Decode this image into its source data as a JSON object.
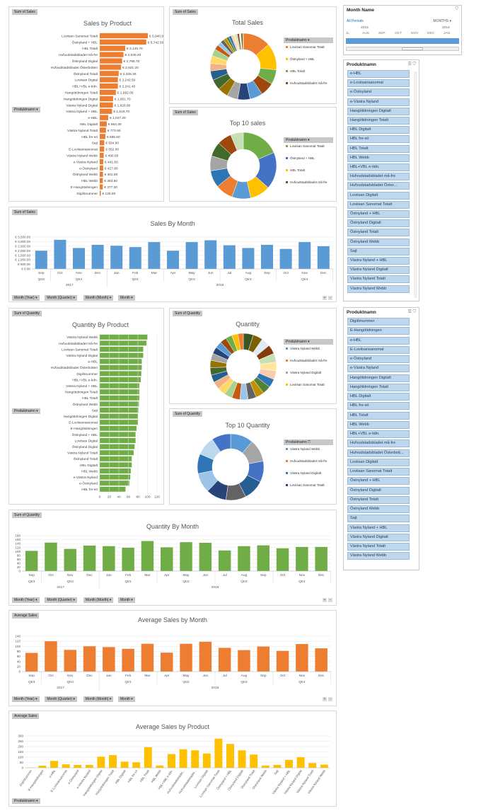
{
  "colors": {
    "orange": "#ed7d31",
    "blue": "#5b9bd5",
    "green": "#70ad47",
    "yellow": "#ffc000",
    "slicer": "#bdd7ee"
  },
  "sales_by_product": {
    "tag": "Sum of Sales",
    "title": "Sales by Product",
    "filter": "Produktnamn",
    "chart_data": {
      "type": "bar",
      "orientation": "horizontal",
      "categories": [
        "Loviisan Sanomat Totalt",
        "Östnyland + HBL",
        "HBL Totalt",
        "Hufvudstadsbladet må-fre",
        "Östnyland Digital",
        "Hufvudstadsbladet Österbotten",
        "Östnyland Totalt",
        "Loviisan Digital",
        "HBL+VBL e-tidn.",
        "Hangötidningen Totalt",
        "Hangötidningen Digital",
        "Västra Nyland Digital",
        "Västra Nyland + HBL",
        "e-HBL",
        "HBL Digitalt",
        "Västra Nyland Totalt",
        "HBL fre-sö",
        "Sajt",
        "E-Loviisansanomat",
        "Västra Nyland Webb",
        "e-Västra Nyland",
        "e-Östnyland",
        "Östnyland Webb",
        "HBL Webb",
        "E-Hangötidningen",
        "Digilönummer"
      ],
      "values": [
        5940.9,
        5742.5,
        3145.7,
        2930.2,
        2766.7,
        2631.2,
        2339.3,
        2242.5,
        2241.4,
        1992,
        1651.7,
        1628.9,
        1519.7,
        1047.2,
        864.3,
        773.9,
        696.6,
        554.9,
        552,
        490,
        441.6,
        427.8,
        401.8,
        383.5,
        377.3,
        130.5
      ],
      "labels": [
        "€ 5,940.90",
        "€ 5,742.50",
        "€ 3,145.70",
        "€ 2,930.20",
        "€ 2,766.70",
        "€ 2,631.20",
        "€ 2,339.30",
        "€ 2,242.50",
        "€ 2,241.40",
        "€ 1,992.00",
        "€ 1,651.70",
        "€ 1,628.90",
        "€ 1,519.70",
        "€ 1,047.20",
        "€ 864.30",
        "€ 773.90",
        "€ 696.60",
        "€ 554.90",
        "€ 552.00",
        "€ 490.00",
        "€ 441.60",
        "€ 427.80",
        "€ 401.80",
        "€ 383.50",
        "€ 377.30",
        "€ 130.50"
      ],
      "title": "Sales by Product"
    }
  },
  "total_sales": {
    "tag": "Sum of Sales",
    "title": "Total Sales",
    "legend_title": "Produktnamn",
    "legend": [
      "Loviisan Sanomat Totalt",
      "Östnyland + HBL",
      "HBL Totalt",
      "Hufvudstadsbladet må-fre"
    ],
    "chart_data": {
      "type": "pie",
      "donut": true,
      "series": [
        {
          "values": [
            5940.9,
            5742.5,
            3145.7,
            2930.2,
            2766.7,
            2631.2,
            2339.3,
            2242.5,
            2241.4,
            1992,
            1651.7,
            1628.9,
            1519.7,
            1047.2,
            864.3,
            773.9,
            696.6,
            554.9,
            552,
            490,
            441.6,
            427.8,
            401.8,
            383.5,
            377.3,
            130.5
          ]
        }
      ]
    }
  },
  "top10_sales": {
    "tag": "Sum of Sales",
    "title": "Top 10 sales",
    "legend_title": "Produktnamn",
    "legend": [
      "Loviisan Sanomat Totalt",
      "Östnyland + HBL",
      "HBL Totalt",
      "Hufvudstadsbladet må-fre"
    ],
    "chart_data": {
      "type": "pie",
      "donut": true,
      "series": [
        {
          "values": [
            5940.9,
            5742.5,
            3145.7,
            2930.2,
            2766.7,
            2631.2,
            2339.3,
            2242.5,
            2241.4,
            1992
          ]
        }
      ]
    }
  },
  "month_slicer": {
    "title": "Month Name",
    "all_periods": "All Periods",
    "unit": "MONTHS",
    "years": [
      "2018",
      "2019"
    ],
    "months": [
      "JL",
      "AUG",
      "SEP",
      "OCT",
      "NOV",
      "DEC",
      "JAN"
    ]
  },
  "product_slicer_1": {
    "title": "Produktnamn",
    "items": [
      "e-HBL",
      "e-Loviisansanomat",
      "e-Östnyland",
      "e-Västra Nyland",
      "Hangötidningen Digitalt",
      "Hangötidningen Totalt",
      "HBL Digitalt",
      "HBL fre-sö",
      "HBL Totalt",
      "HBL Webb",
      "HBL+VBL e-tidn.",
      "Hufvudstadsbladet må-fre",
      "Hufvudstadsbladet Öster...",
      "Loviisan Digitalt",
      "Loviisan Sanomat Totalt",
      "Östnyland + HBL",
      "Östnyland Digitalt",
      "Östnyland Totalt",
      "Östnyland Webb",
      "Sajt",
      "Västra Nyland + HBL",
      "Västra Nyland Digitalt",
      "Västra Nyland Totalt",
      "Västra Nyland Webb"
    ]
  },
  "sales_by_month": {
    "tag": "Sum of Sales",
    "title": "Sales By Month",
    "filters": [
      "Month (Year)",
      "Month (Quarter)",
      "Month (Month)",
      "Month"
    ],
    "quarters": [
      "Qtr3",
      "Qtr4",
      "Qtr1",
      "Qtr2",
      "Qtr3",
      "Qtr4"
    ],
    "years": [
      "2017",
      "2018"
    ],
    "chart_data": {
      "type": "bar",
      "categories": [
        "Sep",
        "Oct",
        "Nov",
        "Dec",
        "Jan",
        "Feb",
        "Mar",
        "Apr",
        "May",
        "Jun",
        "Jul",
        "Aug",
        "Sep",
        "Oct",
        "Nov",
        "Dec"
      ],
      "values": [
        2000,
        3200,
        2300,
        2650,
        2550,
        2400,
        2950,
        2000,
        2950,
        3150,
        2600,
        2300,
        2650,
        2200,
        2950,
        2500
      ],
      "yticks": [
        "€ 3,500.00",
        "€ 3,000.00",
        "€ 2,500.00",
        "€ 2,000.00",
        "€ 1,500.00",
        "€ 1,000.00",
        "€ 500.00",
        "€ 0.00"
      ],
      "ylim": [
        0,
        3500
      ],
      "title": "Sales By Month"
    }
  },
  "quantity_by_product": {
    "tag": "Sum of Quantity",
    "title": "Quantity By Product",
    "filter": "Produktnamn",
    "chart_data": {
      "type": "bar",
      "orientation": "horizontal",
      "categories": [
        "Västra Nyland Webb",
        "Hufvudstadsbladet må-fre",
        "Loviisan Sanomat Totalt",
        "Västra Nyland Digital",
        "e-HBL",
        "Hufvudstadsbladet Österbotten",
        "Digilönummer",
        "HBL+VBL e-tidn.",
        "Västra Nyland + HBL",
        "Hangötidningen Totalt",
        "HBL Totalt",
        "Östnyland Webb",
        "Sajt",
        "Hangötidningen Digital",
        "E-Loviisansanomat",
        "E-Hangötidningen",
        "Östnyland + HBL",
        "Loviisan Digital",
        "Östnyland Digital",
        "Västra Nyland Totalt",
        "Östnyland Totalt",
        "HBL Digitalt",
        "HBL Webb",
        "e-Västra Nyland",
        "e-Östnyland",
        "HBL fre-sö"
      ],
      "values": [
        100,
        98,
        91,
        91,
        88,
        88,
        87,
        86,
        83,
        83,
        83,
        82,
        81,
        80,
        80,
        77,
        75,
        75,
        73,
        71,
        67,
        67,
        65,
        64,
        62,
        54
      ],
      "xticks": [
        "0",
        "20",
        "40",
        "60",
        "80",
        "100",
        "120"
      ],
      "xlim": [
        0,
        120
      ],
      "title": "Quantity By Product"
    }
  },
  "quantity": {
    "tag": "Sum of Quantity",
    "title": "Quantity",
    "legend_title": "Produktnamn",
    "legend": [
      "Västra Nyland Webb",
      "Hufvudstadsbladet må-fre",
      "Västra Nyland Digitalt",
      "Loviisan Sanomat Totalt"
    ],
    "chart_data": {
      "type": "pie",
      "donut": true,
      "series": [
        {
          "values": [
            100,
            98,
            91,
            91,
            88,
            88,
            87,
            86,
            83,
            83,
            83,
            82,
            81,
            80,
            80,
            77,
            75,
            75,
            73,
            71,
            67,
            67,
            65,
            64,
            62,
            54
          ]
        }
      ]
    }
  },
  "top10_quantity": {
    "tag": "Sum of Quantity",
    "title": "Top 10 Quantity",
    "legend_title": "Produktnamn",
    "legend": [
      "Västra Nyland Webb",
      "Hufvudstadsbladet må-fre",
      "Västra Nyland Digitalt",
      "Loviisan Sanomat Totalt"
    ],
    "chart_data": {
      "type": "pie",
      "donut": true,
      "series": [
        {
          "values": [
            100,
            98,
            91,
            91,
            88,
            88,
            87,
            86,
            83,
            83
          ]
        }
      ]
    }
  },
  "product_slicer_2": {
    "title": "Produktnamn",
    "items": [
      "Digilönummer",
      "E-Hangötidningen",
      "e-HBL",
      "E-Loviisansanomat",
      "e-Östnyland",
      "e-Västra Nyland",
      "Hangötidningen Digitalt",
      "Hangötidningen Totalt",
      "HBL Digitalt",
      "HBL fre-sö",
      "HBL Totalt",
      "HBL Webb",
      "HBL+VBL e-tidn.",
      "Hufvudstadsbladet må-fre",
      "Hufvudstadsbladet Österbott...",
      "Loviisan Digitalt",
      "Loviisan Sanomat Totalt",
      "Östnyland + HBL",
      "Östnyland Digitalt",
      "Östnyland Totalt",
      "Östnyland Webb",
      "Sajt",
      "Västra Nyland + HBL",
      "Västra Nyland Digitalt",
      "Västra Nyland Totalt",
      "Västra Nyland Webb"
    ]
  },
  "quantity_by_month": {
    "tag": "Sum of Quantity",
    "title": "Quantity By Month",
    "filters": [
      "Month (Year)",
      "Month (Quarter)",
      "Month (Month)",
      "Month"
    ],
    "quarters": [
      "Qtr3",
      "Qtr4",
      "Qtr1",
      "Qtr2",
      "Qtr3",
      "Qtr4"
    ],
    "years": [
      "2017",
      "2018"
    ],
    "chart_data": {
      "type": "bar",
      "categories": [
        "Sep",
        "Oct",
        "Nov",
        "Dec",
        "Jan",
        "Feb",
        "Mar",
        "Apr",
        "May",
        "Jun",
        "Jul",
        "Aug",
        "Sep",
        "Oct",
        "Nov",
        "Dec"
      ],
      "values": [
        103,
        145,
        113,
        130,
        127,
        119,
        153,
        121,
        147,
        144,
        105,
        127,
        131,
        116,
        123,
        123
      ],
      "yticks": [
        "180",
        "160",
        "140",
        "120",
        "100",
        "80",
        "60",
        "40",
        "20",
        "0"
      ],
      "ylim": [
        0,
        180
      ],
      "title": "Quantity By Month"
    }
  },
  "average_sales_by_month": {
    "tag": "Average Sales",
    "title": "Average Sales by Month",
    "filters": [
      "Month (Year)",
      "Month (Quarter)",
      "Month (Month)",
      "Month"
    ],
    "quarters": [
      "Qtr3",
      "Qtr4",
      "Qtr1",
      "Qtr2",
      "Qtr3",
      "Qtr4"
    ],
    "years": [
      "2017",
      "2018"
    ],
    "chart_data": {
      "type": "bar",
      "categories": [
        "Sep",
        "Oct",
        "Nov",
        "Dec",
        "Jan",
        "Feb",
        "Mar",
        "Apr",
        "May",
        "Jun",
        "Jul",
        "Aug",
        "Sep",
        "Oct",
        "Nov",
        "Dec"
      ],
      "values": [
        74,
        120,
        86,
        100,
        97,
        90,
        110,
        75,
        110,
        118,
        94,
        85,
        99,
        82,
        109,
        92
      ],
      "yticks": [
        "140",
        "120",
        "100",
        "80",
        "60",
        "40",
        "20",
        "0"
      ],
      "ylim": [
        0,
        140
      ],
      "title": "Average Sales by Month"
    }
  },
  "average_sales_by_product": {
    "tag": "Average Sales",
    "title": "Average Sales by Product",
    "filter": "Produktnamn",
    "chart_data": {
      "type": "bar",
      "categories": [
        "Digilönummer",
        "E-Hangötidningen",
        "e-HBL",
        "E-Loviisansanomat",
        "e-Östnyland",
        "e-Västra Nyland",
        "Hangötidningen Digital",
        "Hangötidningen Totalt",
        "HBL Digitalt",
        "HBL fre-sö",
        "HBL Totalt",
        "HBL Webb",
        "HBL+VBL e-tidn.",
        "Hufvudstadsbladet...",
        "Hufvudstadsbladet...",
        "Loviisan Digitalt",
        "Loviisan Sanomat Totalt",
        "Östnyland + HBL",
        "Östnyland Digitalt",
        "Östnyland Totalt",
        "Östnyland Webb",
        "Sajt",
        "Västra Nyland + HBL",
        "Västra Nyland Digital",
        "Västra Nyland Totalt",
        "Västra Nyland Webb"
      ],
      "values": [
        3,
        20,
        65,
        33,
        27,
        28,
        105,
        120,
        58,
        52,
        195,
        22,
        130,
        175,
        165,
        135,
        275,
        225,
        165,
        125,
        22,
        28,
        75,
        100,
        45,
        30
      ],
      "yticks": [
        "300",
        "250",
        "200",
        "150",
        "100",
        "50",
        "0"
      ],
      "ylim": [
        0,
        300
      ],
      "title": "Average Sales by Product"
    }
  }
}
